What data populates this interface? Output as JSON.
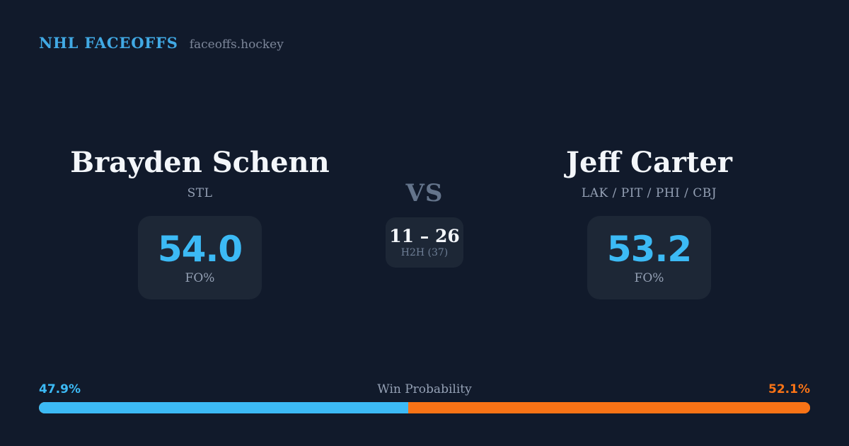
{
  "colors": {
    "bg": "#111a2b",
    "panel": "#1d2736",
    "text": "#f3f6fa",
    "muted": "#94a0b4",
    "vs": "#64748b",
    "h2h-muted": "#6e7e95",
    "blue": "#3cbaf5",
    "orange": "#f97316",
    "brand": "#41a9e4",
    "domain": "#7c8699"
  },
  "header": {
    "brand": "NHL FACEOFFS",
    "domain": "faceoffs.hockey"
  },
  "players": [
    {
      "name": "Brayden Schenn",
      "teams": "STL",
      "fo_pct": "54.0",
      "stat_label": "FO%"
    },
    {
      "name": "Jeff Carter",
      "teams": "LAK / PIT / PHI / CBJ",
      "fo_pct": "53.2",
      "stat_label": "FO%"
    }
  ],
  "matchup": {
    "vs_label": "VS",
    "h2h_score": "11 – 26",
    "h2h_label": "H2H (37)"
  },
  "win_probability": {
    "label": "Win Probability",
    "left_label": "47.9%",
    "right_label": "52.1%",
    "left_pct": 47.9,
    "right_pct": 52.1,
    "left_color": "#3cbaf5",
    "right_color": "#f97316"
  }
}
